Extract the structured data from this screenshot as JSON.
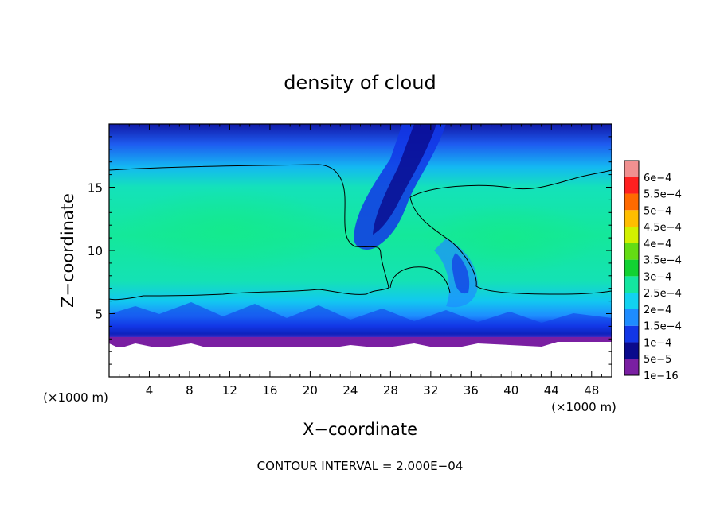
{
  "chart_data": {
    "type": "heatmap",
    "title": "density of cloud",
    "xlabel": "X−coordinate",
    "ylabel": "Z−coordinate",
    "x_unit_label": "(×1000 m)",
    "y_unit_label": "(×1000 m)",
    "footer": "CONTOUR INTERVAL = 2.000E−04",
    "xlim": [
      0,
      50
    ],
    "ylim": [
      0,
      20
    ],
    "x_ticks": [
      4,
      8,
      12,
      16,
      20,
      24,
      28,
      32,
      36,
      40,
      44,
      48
    ],
    "x_tick_labels": [
      "4",
      "8",
      "12",
      "16",
      "20",
      "24",
      "28",
      "32",
      "36",
      "40",
      "44",
      "48"
    ],
    "y_ticks": [
      5,
      10,
      15
    ],
    "y_tick_labels": [
      "5",
      "10",
      "15"
    ],
    "contour_level": 0.0002,
    "colorbar": {
      "levels": [
        {
          "label": "1e−16",
          "color": "#7a1fa2"
        },
        {
          "label": "5e−5",
          "color": "#0a0a8c"
        },
        {
          "label": "1e−4",
          "color": "#1236e6"
        },
        {
          "label": "1.5e−4",
          "color": "#1e8cff"
        },
        {
          "label": "2e−4",
          "color": "#12d2f0"
        },
        {
          "label": "2.5e−4",
          "color": "#14e6a0"
        },
        {
          "label": "3e−4",
          "color": "#12d232"
        },
        {
          "label": "3.5e−4",
          "color": "#64dc14"
        },
        {
          "label": "4e−4",
          "color": "#d2f000"
        },
        {
          "label": "4.5e−4",
          "color": "#ffbe00"
        },
        {
          "label": "5e−4",
          "color": "#ff6a00"
        },
        {
          "label": "5.5e−4",
          "color": "#ff2020"
        },
        {
          "label": "6e−4",
          "color": "#f09090"
        }
      ]
    }
  }
}
